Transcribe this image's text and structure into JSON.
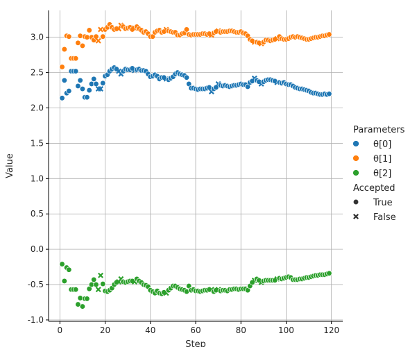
{
  "chart_data": {
    "type": "scatter",
    "xlabel": "Step",
    "ylabel": "Value",
    "xlim": [
      -5,
      125
    ],
    "ylim": [
      -1.02,
      3.38
    ],
    "xticks": [
      0,
      20,
      40,
      60,
      80,
      100,
      120
    ],
    "yticks": [
      -1.0,
      -0.5,
      0.0,
      0.5,
      1.0,
      1.5,
      2.0,
      2.5,
      3.0
    ],
    "grid": true,
    "legend": {
      "placement": "right",
      "hue_title": "Parameters",
      "style_title": "Accepted",
      "hue_entries": [
        "θ[0]",
        "θ[1]",
        "θ[2]"
      ],
      "style_entries": [
        "True",
        "False"
      ]
    },
    "colors": {
      "θ[0]": "#1f77b4",
      "θ[1]": "#ff7f0e",
      "θ[2]": "#2ca02c"
    },
    "x": [
      1,
      2,
      3,
      4,
      5,
      6,
      7,
      8,
      9,
      10,
      11,
      12,
      13,
      14,
      15,
      16,
      17,
      18,
      19,
      20,
      21,
      22,
      23,
      24,
      25,
      26,
      27,
      28,
      29,
      30,
      31,
      32,
      33,
      34,
      35,
      36,
      37,
      38,
      39,
      40,
      41,
      42,
      43,
      44,
      45,
      46,
      47,
      48,
      49,
      50,
      51,
      52,
      53,
      54,
      55,
      56,
      57,
      58,
      59,
      60,
      61,
      62,
      63,
      64,
      65,
      66,
      67,
      68,
      69,
      70,
      71,
      72,
      73,
      74,
      75,
      76,
      77,
      78,
      79,
      80,
      81,
      82,
      83,
      84,
      85,
      86,
      87,
      88,
      89,
      90,
      91,
      92,
      93,
      94,
      95,
      96,
      97,
      98,
      99,
      100,
      101,
      102,
      103,
      104,
      105,
      106,
      107,
      108,
      109,
      110,
      111,
      112,
      113,
      114,
      115,
      116,
      117,
      118,
      119
    ],
    "accepted": [
      1,
      1,
      1,
      1,
      1,
      1,
      1,
      1,
      1,
      1,
      1,
      1,
      1,
      1,
      1,
      1,
      0,
      0,
      1,
      1,
      1,
      1,
      1,
      1,
      1,
      0,
      0,
      1,
      1,
      1,
      1,
      1,
      0,
      1,
      1,
      1,
      1,
      1,
      1,
      1,
      1,
      1,
      1,
      1,
      1,
      1,
      0,
      1,
      1,
      1,
      1,
      1,
      1,
      1,
      1,
      1,
      1,
      1,
      1,
      1,
      1,
      1,
      1,
      1,
      1,
      1,
      0,
      1,
      1,
      0,
      1,
      1,
      1,
      1,
      1,
      1,
      1,
      1,
      1,
      1,
      1,
      1,
      1,
      1,
      1,
      0,
      1,
      1,
      0,
      1,
      1,
      1,
      1,
      1,
      1,
      0,
      1,
      1,
      1,
      1,
      1,
      1,
      1,
      1,
      1,
      1,
      1,
      1,
      1,
      1,
      1,
      1,
      1,
      1,
      1,
      1,
      1,
      1,
      1
    ],
    "series": [
      {
        "name": "θ[0]",
        "values": [
          2.14,
          2.39,
          2.21,
          2.24,
          2.52,
          2.52,
          2.52,
          2.31,
          2.39,
          2.27,
          2.15,
          2.15,
          2.25,
          2.34,
          2.41,
          2.34,
          2.27,
          2.27,
          2.35,
          2.45,
          2.47,
          2.52,
          2.55,
          2.57,
          2.55,
          2.52,
          2.48,
          2.52,
          2.55,
          2.54,
          2.54,
          2.56,
          2.53,
          2.54,
          2.55,
          2.53,
          2.53,
          2.52,
          2.48,
          2.44,
          2.45,
          2.47,
          2.45,
          2.41,
          2.43,
          2.43,
          2.41,
          2.4,
          2.42,
          2.44,
          2.48,
          2.5,
          2.48,
          2.47,
          2.46,
          2.43,
          2.34,
          2.28,
          2.28,
          2.27,
          2.26,
          2.27,
          2.27,
          2.27,
          2.28,
          2.29,
          2.23,
          2.27,
          2.29,
          2.34,
          2.32,
          2.31,
          2.32,
          2.31,
          2.3,
          2.31,
          2.32,
          2.32,
          2.33,
          2.34,
          2.33,
          2.33,
          2.3,
          2.36,
          2.38,
          2.42,
          2.39,
          2.37,
          2.34,
          2.37,
          2.39,
          2.4,
          2.4,
          2.39,
          2.38,
          2.36,
          2.36,
          2.35,
          2.36,
          2.34,
          2.33,
          2.33,
          2.31,
          2.29,
          2.28,
          2.27,
          2.27,
          2.26,
          2.25,
          2.24,
          2.22,
          2.21,
          2.21,
          2.2,
          2.19,
          2.19,
          2.2,
          2.19,
          2.2
        ]
      },
      {
        "name": "θ[1]",
        "values": [
          2.58,
          2.83,
          3.02,
          3.01,
          2.7,
          2.7,
          2.7,
          2.92,
          3.02,
          2.88,
          3.01,
          3.0,
          3.1,
          3.0,
          2.96,
          3.01,
          2.95,
          3.11,
          3.01,
          3.11,
          3.14,
          3.18,
          3.14,
          3.11,
          3.12,
          3.12,
          3.17,
          3.15,
          3.12,
          3.13,
          3.14,
          3.11,
          3.13,
          3.15,
          3.12,
          3.1,
          3.07,
          3.08,
          3.05,
          3.01,
          3.01,
          3.07,
          3.09,
          3.1,
          3.07,
          3.08,
          3.11,
          3.09,
          3.08,
          3.07,
          3.07,
          3.03,
          3.03,
          3.05,
          3.06,
          3.11,
          3.04,
          3.03,
          3.04,
          3.04,
          3.04,
          3.04,
          3.05,
          3.05,
          3.04,
          3.05,
          3.03,
          3.06,
          3.08,
          3.09,
          3.07,
          3.08,
          3.08,
          3.08,
          3.09,
          3.09,
          3.08,
          3.07,
          3.07,
          3.08,
          3.06,
          3.05,
          3.02,
          2.97,
          2.95,
          2.93,
          2.93,
          2.92,
          2.91,
          2.93,
          2.96,
          2.96,
          2.95,
          2.96,
          2.97,
          2.98,
          3.01,
          2.98,
          2.97,
          2.97,
          2.98,
          3.0,
          3.01,
          3.0,
          3.01,
          3.0,
          2.99,
          2.98,
          2.97,
          2.97,
          2.98,
          2.99,
          3.0,
          3.0,
          3.01,
          3.02,
          3.02,
          3.03,
          3.04
        ]
      },
      {
        "name": "θ[2]",
        "values": [
          -0.21,
          -0.45,
          -0.26,
          -0.29,
          -0.57,
          -0.57,
          -0.57,
          -0.78,
          -0.69,
          -0.81,
          -0.7,
          -0.7,
          -0.56,
          -0.5,
          -0.43,
          -0.5,
          -0.57,
          -0.37,
          -0.49,
          -0.59,
          -0.6,
          -0.58,
          -0.55,
          -0.5,
          -0.47,
          -0.46,
          -0.42,
          -0.46,
          -0.47,
          -0.46,
          -0.45,
          -0.45,
          -0.46,
          -0.42,
          -0.45,
          -0.47,
          -0.5,
          -0.51,
          -0.53,
          -0.58,
          -0.6,
          -0.62,
          -0.59,
          -0.62,
          -0.63,
          -0.61,
          -0.62,
          -0.58,
          -0.55,
          -0.52,
          -0.52,
          -0.54,
          -0.56,
          -0.57,
          -0.58,
          -0.6,
          -0.52,
          -0.58,
          -0.57,
          -0.59,
          -0.59,
          -0.6,
          -0.59,
          -0.58,
          -0.58,
          -0.57,
          -0.57,
          -0.6,
          -0.58,
          -0.57,
          -0.59,
          -0.58,
          -0.58,
          -0.59,
          -0.57,
          -0.57,
          -0.56,
          -0.56,
          -0.57,
          -0.56,
          -0.56,
          -0.56,
          -0.58,
          -0.52,
          -0.47,
          -0.44,
          -0.42,
          -0.44,
          -0.47,
          -0.45,
          -0.44,
          -0.44,
          -0.44,
          -0.44,
          -0.44,
          -0.42,
          -0.41,
          -0.42,
          -0.41,
          -0.4,
          -0.39,
          -0.4,
          -0.43,
          -0.43,
          -0.43,
          -0.42,
          -0.42,
          -0.41,
          -0.4,
          -0.4,
          -0.39,
          -0.38,
          -0.37,
          -0.37,
          -0.36,
          -0.36,
          -0.36,
          -0.35,
          -0.34
        ]
      }
    ]
  }
}
